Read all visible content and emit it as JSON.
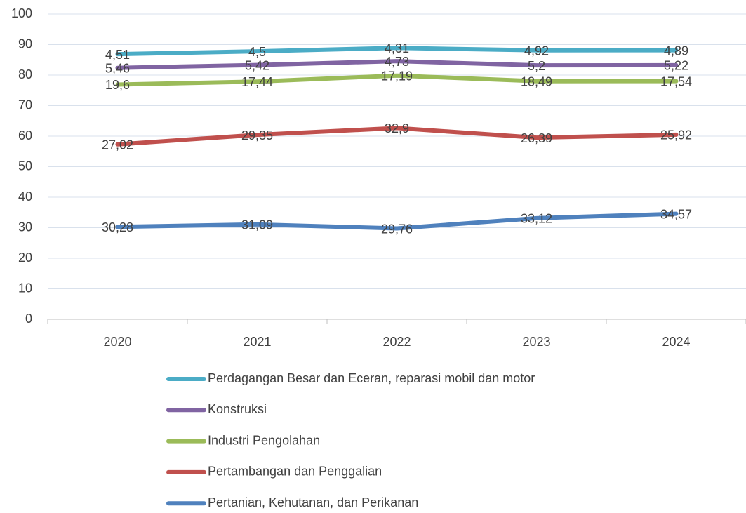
{
  "chart_data": {
    "type": "line",
    "stacked": true,
    "categories": [
      "2020",
      "2021",
      "2022",
      "2023",
      "2024"
    ],
    "series": [
      {
        "name": "Pertanian, Kehutanan, dan Perikanan",
        "color": "#4f81bd",
        "values": [
          30.28,
          31.09,
          29.76,
          33.12,
          34.57
        ],
        "value_labels": [
          "30,28",
          "31,09",
          "29,76",
          "33,12",
          "34,57"
        ]
      },
      {
        "name": "Pertambangan dan Penggalian",
        "color": "#c0504d",
        "values": [
          27.02,
          29.35,
          32.9,
          26.39,
          25.92
        ],
        "value_labels": [
          "27,02",
          "29,35",
          "32,9",
          "26,39",
          "25,92"
        ]
      },
      {
        "name": "Industri Pengolahan",
        "color": "#9bbb59",
        "values": [
          19.6,
          17.44,
          17.19,
          18.49,
          17.54
        ],
        "value_labels": [
          "19,6",
          "17,44",
          "17,19",
          "18,49",
          "17,54"
        ]
      },
      {
        "name": "Konstruksi",
        "color": "#8064a2",
        "values": [
          5.46,
          5.42,
          4.73,
          5.2,
          5.22
        ],
        "value_labels": [
          "5,46",
          "5,42",
          "4,73",
          "5,2",
          "5,22"
        ]
      },
      {
        "name": "Perdagangan Besar dan Eceran, reparasi mobil dan motor",
        "color": "#4bacc6",
        "values": [
          4.51,
          4.5,
          4.31,
          4.92,
          4.89
        ],
        "value_labels": [
          "4,51",
          "4,5",
          "4,31",
          "4,92",
          "4,89"
        ]
      }
    ],
    "ylim": [
      0,
      100
    ],
    "yticks": [
      0,
      10,
      20,
      30,
      40,
      50,
      60,
      70,
      80,
      90,
      100
    ],
    "grid": true,
    "legend": "bottom"
  }
}
